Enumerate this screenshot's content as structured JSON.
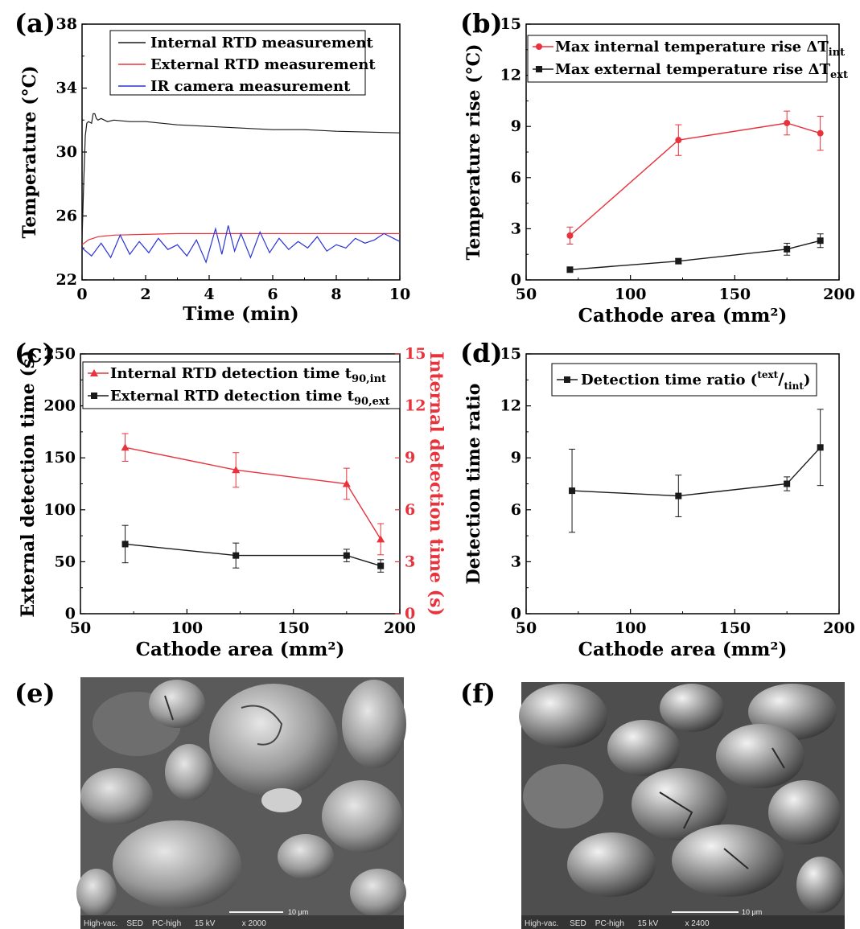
{
  "panel_labels": [
    "(a)",
    "(b)",
    "(c)",
    "(d)",
    "(e)",
    "(f)"
  ],
  "colors": {
    "black": "#1a1a1a",
    "red": "#e8323c",
    "blue": "#2b34d6",
    "axis": "#000000"
  },
  "chart_data": [
    {
      "panel": "(a)",
      "type": "line",
      "xlabel": "Time (min)",
      "ylabel": "Temperature (°C)",
      "xlim": [
        0,
        10
      ],
      "ylim": [
        22,
        38
      ],
      "xticks": [
        0,
        2,
        4,
        6,
        8,
        10
      ],
      "yticks": [
        22,
        26,
        30,
        34,
        38
      ],
      "legend_position": "top-center",
      "series": [
        {
          "name": "Internal RTD measurement",
          "color": "#1a1a1a",
          "x": [
            0,
            0.05,
            0.1,
            0.15,
            0.2,
            0.3,
            0.35,
            0.4,
            0.45,
            0.5,
            0.6,
            0.8,
            1,
            1.5,
            2,
            3,
            4,
            5,
            6,
            7,
            8,
            9,
            10
          ],
          "y": [
            24.5,
            28.0,
            31.0,
            31.8,
            31.9,
            31.8,
            32.4,
            32.4,
            32.1,
            32.0,
            32.1,
            31.9,
            32.0,
            31.9,
            31.9,
            31.7,
            31.6,
            31.5,
            31.4,
            31.4,
            31.3,
            31.25,
            31.2
          ]
        },
        {
          "name": "External RTD measurement",
          "color": "#e8323c",
          "x": [
            0,
            0.2,
            0.5,
            1,
            2,
            3,
            4,
            5,
            6,
            7,
            8,
            9,
            10
          ],
          "y": [
            24.2,
            24.5,
            24.7,
            24.8,
            24.85,
            24.9,
            24.9,
            24.9,
            24.9,
            24.9,
            24.9,
            24.9,
            24.9
          ]
        },
        {
          "name": "IR camera measurement",
          "color": "#2b34d6",
          "x": [
            0,
            0.3,
            0.6,
            0.9,
            1.2,
            1.5,
            1.8,
            2.1,
            2.4,
            2.7,
            3.0,
            3.3,
            3.6,
            3.9,
            4.2,
            4.4,
            4.6,
            4.8,
            5.0,
            5.3,
            5.6,
            5.9,
            6.2,
            6.5,
            6.8,
            7.1,
            7.4,
            7.7,
            8.0,
            8.3,
            8.6,
            8.9,
            9.2,
            9.5,
            9.8,
            10
          ],
          "y": [
            24.0,
            23.5,
            24.3,
            23.4,
            24.8,
            23.6,
            24.4,
            23.7,
            24.6,
            23.9,
            24.2,
            23.5,
            24.5,
            23.1,
            25.2,
            23.6,
            25.4,
            23.8,
            24.9,
            23.4,
            25.0,
            23.7,
            24.6,
            23.9,
            24.4,
            24.0,
            24.7,
            23.8,
            24.2,
            24.0,
            24.6,
            24.3,
            24.5,
            24.9,
            24.6,
            24.4
          ]
        }
      ]
    },
    {
      "panel": "(b)",
      "type": "line",
      "xlabel": "Cathode area (mm²)",
      "ylabel": "Temperature rise (°C)",
      "xlim": [
        50,
        200
      ],
      "ylim": [
        0,
        15
      ],
      "xticks": [
        50,
        100,
        150,
        200
      ],
      "yticks": [
        0,
        3,
        6,
        9,
        12,
        15
      ],
      "legend_position": "top-left",
      "series": [
        {
          "name": "Max internal temperature rise ΔT",
          "name_sub": "int",
          "color": "#e8323c",
          "marker": "circle",
          "x": [
            71,
            123,
            175,
            191
          ],
          "y": [
            2.6,
            8.2,
            9.2,
            8.6
          ],
          "err": [
            0.5,
            0.9,
            0.7,
            1.0
          ]
        },
        {
          "name": "Max external temperature rise ΔT",
          "name_sub": "ext",
          "color": "#1a1a1a",
          "marker": "square",
          "x": [
            71,
            123,
            175,
            191
          ],
          "y": [
            0.6,
            1.1,
            1.8,
            2.3
          ],
          "err": [
            0.1,
            0.15,
            0.35,
            0.4
          ]
        }
      ]
    },
    {
      "panel": "(c)",
      "type": "line",
      "xlabel": "Cathode area (mm²)",
      "ylabel": "External detection time (s)",
      "ylabel_right": "Internal detection time (s)",
      "xlim": [
        50,
        200
      ],
      "ylim": [
        0,
        250
      ],
      "ylim_right": [
        0,
        15
      ],
      "xticks": [
        50,
        100,
        150,
        200
      ],
      "yticks": [
        0,
        50,
        100,
        150,
        200,
        250
      ],
      "yticks_right": [
        0,
        3,
        6,
        9,
        12,
        15
      ],
      "legend_position": "top-left",
      "series": [
        {
          "name": "Internal RTD detection time t",
          "name_sub": "90,int",
          "color": "#e8323c",
          "marker": "triangle",
          "axis": "right",
          "x": [
            71,
            123,
            175,
            191
          ],
          "y": [
            9.6,
            8.3,
            7.5,
            4.3
          ],
          "err": [
            0.8,
            1.0,
            0.9,
            0.9
          ]
        },
        {
          "name": "External RTD detection time t",
          "name_sub": "90,ext",
          "color": "#1a1a1a",
          "marker": "square",
          "axis": "left",
          "x": [
            71,
            123,
            175,
            191
          ],
          "y": [
            67,
            56,
            56,
            46
          ],
          "err": [
            18,
            12,
            6,
            6
          ]
        }
      ]
    },
    {
      "panel": "(d)",
      "type": "line",
      "xlabel": "Cathode area (mm²)",
      "ylabel": "Detection time ratio",
      "xlim": [
        50,
        200
      ],
      "ylim": [
        0,
        15
      ],
      "xticks": [
        50,
        100,
        150,
        200
      ],
      "yticks": [
        0,
        3,
        6,
        9,
        12,
        15
      ],
      "legend_position": "top-center",
      "series": [
        {
          "name": "Detection time ratio (",
          "name_frac_num": "ext",
          "name_frac_den": "int",
          "color": "#1a1a1a",
          "marker": "square",
          "x": [
            72,
            123,
            175,
            191
          ],
          "y": [
            7.1,
            6.8,
            7.5,
            9.6
          ],
          "err": [
            2.4,
            1.2,
            0.4,
            2.2
          ]
        }
      ]
    }
  ],
  "images": {
    "e": {
      "caption": "High-vac.    SED    PC-high      15 kV            x 2000",
      "scale": "10 μm"
    },
    "f": {
      "caption": "High-vac.     SED    PC-high      15 kV            x 2400",
      "scale": "10 μm"
    }
  }
}
